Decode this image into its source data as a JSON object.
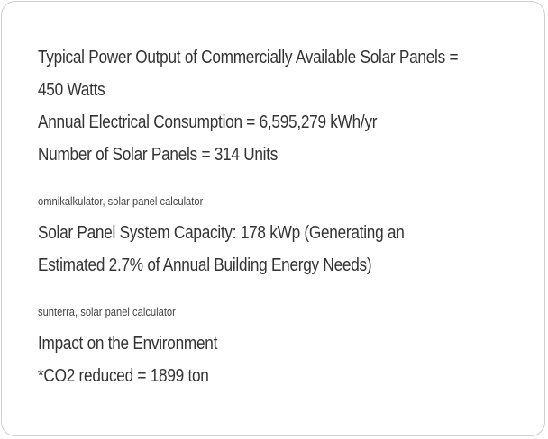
{
  "panel_block": {
    "line1a": "Typical Power Output of Commercially Available Solar Panels =",
    "line1b": "450 Watts",
    "line2": "Annual Electrical Consumption = 6,595,279 kWh/yr",
    "line3": "Number of Solar Panels = 314 Units"
  },
  "source1": "omnikalkulator, solar panel calculator",
  "capacity_block": {
    "line1": "Solar Panel System Capacity: 178 kWp (Generating an",
    "line2": "Estimated 2.7% of Annual Building Energy Needs)"
  },
  "source2": "sunterra, solar panel calculator",
  "environment_block": {
    "heading": "Impact on the Environment",
    "co2": "*CO2 reduced = 1899 ton"
  }
}
